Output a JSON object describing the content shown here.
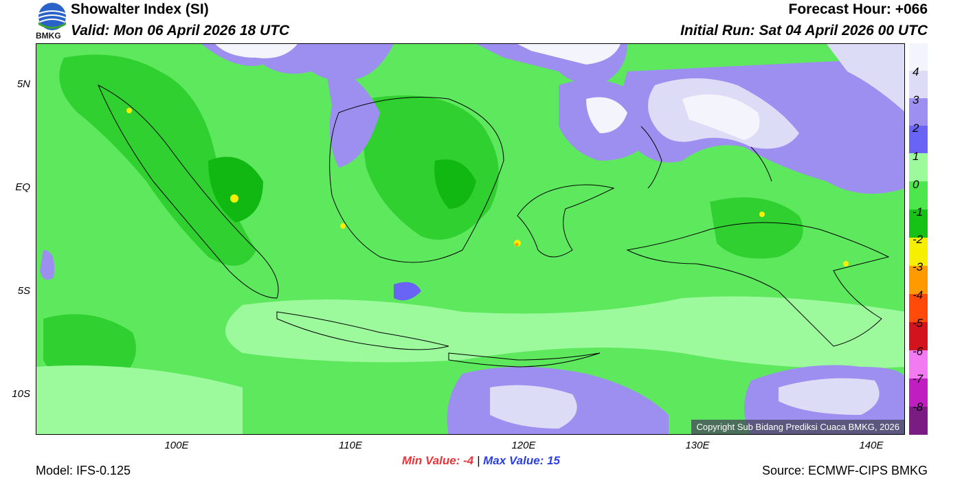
{
  "header": {
    "title": "Showalter Index (SI)",
    "valid": "Valid: Mon 06 April 2026 18 UTC",
    "forecast_hour": "Forecast Hour: +066",
    "initial_run": "Initial Run: Sat 04 April 2026 00 UTC",
    "logo_text": "BMKG"
  },
  "map": {
    "lat_labels": [
      "5N",
      "EQ",
      "5S",
      "10S"
    ],
    "lon_labels": [
      "100E",
      "110E",
      "120E",
      "130E",
      "140E"
    ],
    "copyright": "Copyright Sub Bidang Prediksi Cuaca BMKG, 2026"
  },
  "colorbar": {
    "labels": [
      "4",
      "3",
      "2",
      "1",
      "0",
      "-1",
      "-2",
      "-3",
      "-4",
      "-5",
      "-6",
      "-7",
      "-8"
    ],
    "colors": [
      "#f4f4fc",
      "#dcdcf6",
      "#9d8ff0",
      "#6a64f6",
      "#9cfa9c",
      "#4de64d",
      "#15c215",
      "#f6f000",
      "#ff9a00",
      "#ff4a0a",
      "#d2141e",
      "#f27bf2",
      "#c11ec1",
      "#7a1c82"
    ]
  },
  "stats": {
    "min_label": "Min Value:",
    "min_value": "-4",
    "sep": "|",
    "max_label": "Max Value:",
    "max_value": "15"
  },
  "footer": {
    "model": "Model: IFS-0.125",
    "source": "Source: ECMWF-CIPS BMKG"
  }
}
